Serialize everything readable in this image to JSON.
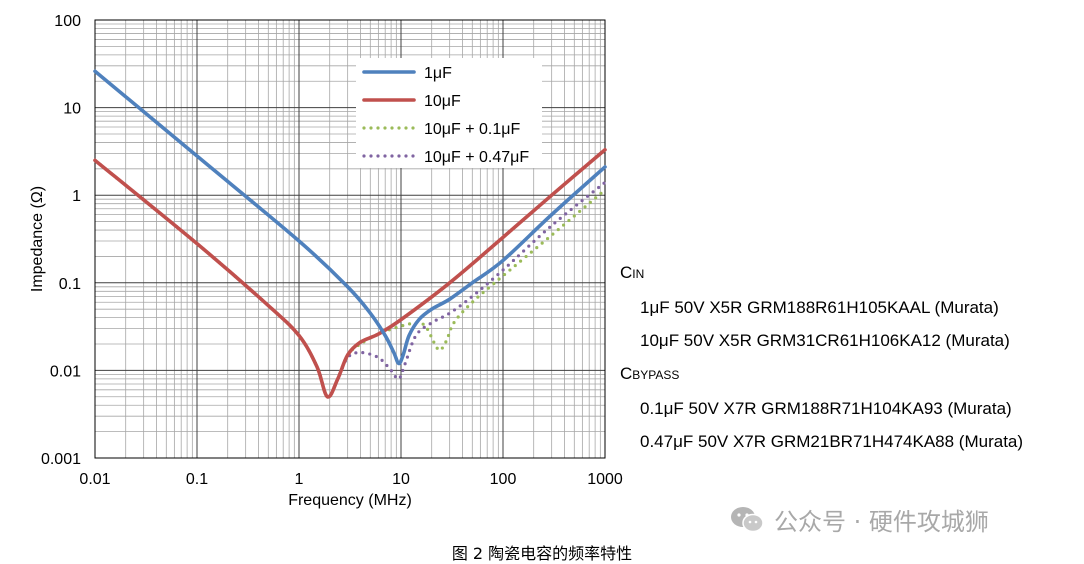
{
  "chart_data": {
    "type": "line",
    "xlabel": "Frequency (MHz)",
    "ylabel": "Impedance (Ω)",
    "xscale": "log",
    "yscale": "log",
    "xlim": [
      0.01,
      1000
    ],
    "ylim": [
      0.001,
      100
    ],
    "grid": true,
    "legend_position": "top-center",
    "x_tick_labels": [
      "0.01",
      "0.1",
      "1",
      "10",
      "100",
      "1000"
    ],
    "y_tick_labels": [
      "0.001",
      "0.01",
      "0.1",
      "1",
      "10",
      "100"
    ],
    "series": [
      {
        "name": "1μF",
        "color": "#4f81bd",
        "style": "solid",
        "x": [
          0.01,
          0.1,
          1,
          3,
          5,
          7,
          8.5,
          9.5,
          10.5,
          12,
          15,
          20,
          30,
          50,
          100,
          300,
          1000
        ],
        "y": [
          26,
          2.8,
          0.3,
          0.09,
          0.045,
          0.025,
          0.016,
          0.012,
          0.015,
          0.025,
          0.038,
          0.05,
          0.065,
          0.1,
          0.18,
          0.6,
          2.1
        ]
      },
      {
        "name": "10μF",
        "color": "#c0504d",
        "style": "solid",
        "x": [
          0.01,
          0.1,
          0.5,
          1,
          1.5,
          1.9,
          2.4,
          3,
          4,
          6,
          10,
          30,
          100,
          300,
          1000
        ],
        "y": [
          2.5,
          0.28,
          0.055,
          0.025,
          0.011,
          0.005,
          0.008,
          0.015,
          0.021,
          0.026,
          0.038,
          0.1,
          0.33,
          1.0,
          3.3
        ]
      },
      {
        "name": "10μF + 0.1μF",
        "color": "#9bbb59",
        "style": "dotted",
        "x": [
          0.01,
          0.1,
          0.5,
          1,
          1.5,
          1.9,
          2.4,
          3,
          4,
          6,
          10,
          15,
          18,
          21,
          24,
          28,
          33,
          50,
          100,
          300,
          1000
        ],
        "y": [
          2.5,
          0.28,
          0.055,
          0.025,
          0.011,
          0.005,
          0.008,
          0.015,
          0.02,
          0.026,
          0.032,
          0.035,
          0.03,
          0.021,
          0.017,
          0.022,
          0.035,
          0.06,
          0.12,
          0.35,
          1.15
        ]
      },
      {
        "name": "10μF + 0.47μF",
        "color": "#8064a2",
        "style": "dotted",
        "x": [
          0.01,
          0.1,
          0.5,
          1,
          1.5,
          1.9,
          2.4,
          3,
          4,
          6,
          8,
          9.5,
          11,
          14,
          20,
          30,
          50,
          100,
          300,
          1000
        ],
        "y": [
          2.5,
          0.28,
          0.055,
          0.025,
          0.011,
          0.005,
          0.008,
          0.014,
          0.016,
          0.014,
          0.01,
          0.008,
          0.012,
          0.025,
          0.035,
          0.045,
          0.07,
          0.14,
          0.45,
          1.4
        ]
      }
    ]
  },
  "notes": {
    "cin_label": "C",
    "cin_sub": "IN",
    "cin_items": [
      "1μF 50V X5R GRM188R61H105KAAL (Murata)",
      "10μF 50V X5R GRM31CR61H106KA12 (Murata)"
    ],
    "cbypass_label": "C",
    "cbypass_sub": "BYPASS",
    "cbypass_items": [
      "0.1μF 50V X7R GRM188R71H104KA93 (Murata)",
      "0.47μF 50V X7R GRM21BR71H474KA88 (Murata)"
    ]
  },
  "watermark": {
    "text": "公众号 · 硬件攻城狮",
    "icon": "wechat-icon"
  },
  "caption": "图 2 陶瓷电容的频率特性"
}
